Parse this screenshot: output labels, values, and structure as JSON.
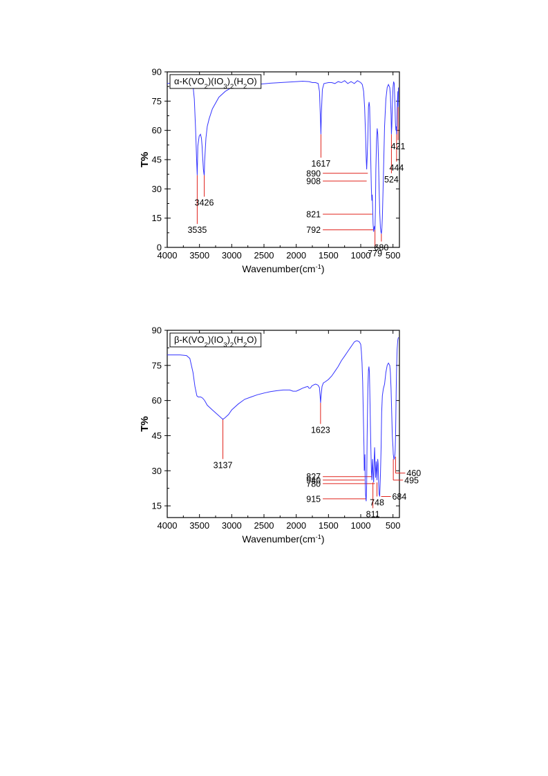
{
  "colors": {
    "line": "#3333ff",
    "annotation": "#e0201a",
    "axis": "#000000"
  },
  "chart_data": [
    {
      "type": "line",
      "legend": "α-K(VO2)(IO3)2(H2O)",
      "legend_placement": "top-left",
      "xlabel": "Wavenumber(cm-1)",
      "ylabel": "T%",
      "xlim": [
        4000,
        400
      ],
      "ylim": [
        0,
        90
      ],
      "xticks": [
        4000,
        3500,
        3000,
        2500,
        2000,
        1500,
        1000,
        500
      ],
      "yticks": [
        0,
        15,
        30,
        45,
        60,
        75,
        90
      ],
      "series": [
        {
          "x": [
            4000,
            3900,
            3800,
            3700,
            3650,
            3600,
            3580,
            3560,
            3545,
            3535,
            3525,
            3505,
            3485,
            3470,
            3460,
            3450,
            3440,
            3430,
            3426,
            3420,
            3400,
            3380,
            3350,
            3300,
            3200,
            3100,
            3000,
            2900,
            2800,
            2600,
            2400,
            2200,
            2000,
            1900,
            1800,
            1750,
            1700,
            1660,
            1640,
            1625,
            1617,
            1610,
            1595,
            1570,
            1500,
            1450,
            1400,
            1350,
            1300,
            1250,
            1200,
            1150,
            1100,
            1050,
            1000,
            975,
            955,
            940,
            925,
            915,
            908,
            900,
            890,
            880,
            870,
            862,
            855,
            845,
            835,
            828,
            821,
            815,
            808,
            800,
            792,
            785,
            779,
            772,
            765,
            755,
            745,
            735,
            725,
            715,
            705,
            695,
            687,
            680,
            673,
            665,
            650,
            630,
            610,
            590,
            570,
            550,
            540,
            530,
            524,
            518,
            510,
            500,
            490,
            480,
            470,
            462,
            455,
            449,
            444,
            440,
            435,
            430,
            425,
            421,
            418,
            415
          ],
          "y": [
            84,
            84.3,
            84.5,
            85,
            85,
            83,
            76,
            60,
            45,
            37,
            52,
            57,
            58,
            56,
            52,
            46,
            40,
            37.5,
            37,
            44,
            56,
            62,
            66,
            71,
            77,
            80,
            82,
            82.5,
            83,
            83.6,
            84.2,
            84.6,
            85,
            85.2,
            85,
            84.5,
            84.5,
            84,
            80,
            66,
            58,
            69,
            81,
            84,
            84.5,
            84.5,
            84,
            85,
            84.5,
            85.5,
            84,
            85,
            84,
            85.5,
            84.5,
            83.5,
            80,
            72,
            58,
            46,
            40,
            46,
            56,
            72,
            74.5,
            72,
            62,
            45,
            30,
            24,
            27,
            20,
            12,
            8,
            10,
            11,
            9,
            20,
            40,
            55,
            61,
            58,
            45,
            30,
            18,
            10,
            8,
            7,
            9,
            15,
            35,
            62,
            76,
            82,
            83.5,
            82,
            78,
            68,
            58,
            62,
            72,
            82,
            85,
            84,
            74,
            64,
            60,
            62,
            58,
            62,
            71,
            76,
            80,
            72,
            76,
            82
          ]
        }
      ],
      "annotations": [
        {
          "label": "3535",
          "x": 3535,
          "y": 37,
          "dir": "down",
          "ty": 12
        },
        {
          "label": "3426",
          "x": 3426,
          "y": 37,
          "dir": "down",
          "ty": 26
        },
        {
          "label": "1617",
          "x": 1617,
          "y": 58,
          "dir": "down",
          "ty": 46
        },
        {
          "label": "890",
          "x": 890,
          "y": 38,
          "dir": "left",
          "ty": 38
        },
        {
          "label": "908",
          "x": 908,
          "y": 34,
          "dir": "left",
          "ty": 34
        },
        {
          "label": "821",
          "x": 821,
          "y": 17,
          "dir": "left",
          "ty": 17
        },
        {
          "label": "792",
          "x": 792,
          "y": 9,
          "dir": "left",
          "ty": 9
        },
        {
          "label": "779",
          "x": 779,
          "y": 9,
          "dir": "down",
          "ty": 0
        },
        {
          "label": "680",
          "x": 680,
          "y": 7,
          "dir": "down",
          "ty": 3
        },
        {
          "label": "524",
          "x": 524,
          "y": 58,
          "dir": "down",
          "ty": 38
        },
        {
          "label": "444",
          "x": 444,
          "y": 60,
          "dir": "down",
          "ty": 44
        },
        {
          "label": "421",
          "x": 421,
          "y": 72,
          "dir": "down",
          "ty": 55
        }
      ]
    },
    {
      "type": "line",
      "legend": "β-K(VO2)(IO3)2(H2O)",
      "legend_placement": "top-left",
      "xlabel": "Wavenumber(cm-1)",
      "ylabel": "T%",
      "xlim": [
        4000,
        400
      ],
      "ylim": [
        10,
        90
      ],
      "xticks": [
        4000,
        3500,
        3000,
        2500,
        2000,
        1500,
        1000,
        500
      ],
      "yticks": [
        15,
        30,
        45,
        60,
        75,
        90
      ],
      "series": [
        {
          "x": [
            4000,
            3900,
            3800,
            3700,
            3650,
            3600,
            3570,
            3540,
            3520,
            3500,
            3480,
            3450,
            3420,
            3380,
            3300,
            3200,
            3160,
            3137,
            3110,
            3050,
            3000,
            2900,
            2800,
            2700,
            2600,
            2500,
            2400,
            2300,
            2200,
            2100,
            2050,
            2000,
            1950,
            1900,
            1850,
            1820,
            1800,
            1780,
            1760,
            1740,
            1720,
            1700,
            1680,
            1660,
            1640,
            1630,
            1623,
            1615,
            1600,
            1580,
            1550,
            1500,
            1450,
            1400,
            1350,
            1300,
            1250,
            1200,
            1150,
            1100,
            1070,
            1050,
            1020,
            1000,
            990,
            980,
            970,
            960,
            950,
            945,
            940,
            935,
            930,
            925,
            920,
            915,
            908,
            900,
            890,
            880,
            872,
            865,
            855,
            845,
            835,
            827,
            822,
            817,
            811,
            805,
            800,
            795,
            790,
            785,
            780,
            775,
            770,
            765,
            760,
            755,
            748,
            742,
            736,
            730,
            722,
            715,
            705,
            695,
            684,
            675,
            665,
            650,
            630,
            610,
            590,
            570,
            550,
            540,
            530,
            520,
            510,
            500,
            495,
            490,
            485,
            480,
            475,
            470,
            465,
            460,
            455,
            450,
            445,
            440,
            435,
            430,
            425,
            420,
            415
          ],
          "y": [
            79.5,
            79.5,
            79.5,
            79.2,
            78,
            72,
            66,
            62,
            61.5,
            61.5,
            61.5,
            61,
            60,
            58,
            56,
            53.5,
            52.5,
            52,
            52.5,
            54,
            56,
            58.5,
            60.5,
            61.5,
            62.5,
            63.2,
            63.8,
            64.2,
            64.5,
            64.5,
            64,
            64,
            64.6,
            65.3,
            65.8,
            66,
            65.2,
            65.3,
            66.2,
            66.5,
            66.8,
            67,
            66.8,
            66.5,
            65.5,
            62,
            59,
            62,
            66,
            67.5,
            68,
            69,
            70.5,
            72.5,
            74.5,
            77,
            79,
            81,
            83,
            85,
            85.5,
            85.5,
            85,
            84,
            81,
            76,
            68,
            55,
            40,
            30,
            33,
            37,
            25,
            20,
            18,
            17,
            24,
            45,
            65,
            73,
            74.5,
            72,
            58,
            42,
            30,
            26,
            31,
            35,
            31,
            27,
            25,
            30,
            36,
            40,
            36,
            31,
            27,
            30,
            34,
            31,
            26,
            31,
            35,
            33,
            25,
            20,
            19,
            28,
            40,
            55,
            62,
            65,
            67,
            72,
            75,
            76,
            75,
            72,
            65,
            55,
            45,
            40,
            37,
            36,
            35,
            35,
            36,
            37,
            39,
            45,
            55,
            64,
            72,
            78,
            82,
            84,
            86,
            86.5,
            87
          ]
        }
      ],
      "annotations": [
        {
          "label": "3137",
          "x": 3137,
          "y": 52,
          "dir": "down",
          "ty": 35
        },
        {
          "label": "1623",
          "x": 1623,
          "y": 59,
          "dir": "down",
          "ty": 50
        },
        {
          "label": "827",
          "x": 827,
          "y": 27.5,
          "dir": "left",
          "ty": 27.5
        },
        {
          "label": "940",
          "x": 940,
          "y": 26,
          "dir": "left",
          "ty": 26
        },
        {
          "label": "780",
          "x": 780,
          "y": 24.5,
          "dir": "left",
          "ty": 24.5
        },
        {
          "label": "915",
          "x": 915,
          "y": 18,
          "dir": "left",
          "ty": 18
        },
        {
          "label": "811",
          "x": 811,
          "y": 25,
          "dir": "down",
          "ty": 14
        },
        {
          "label": "748",
          "x": 748,
          "y": 25,
          "dir": "down",
          "ty": 19
        },
        {
          "label": "684",
          "x": 684,
          "y": 19,
          "dir": "right",
          "ty": 19
        },
        {
          "label": "495",
          "x": 495,
          "y": 35,
          "dir": "right",
          "ty": 26
        },
        {
          "label": "460",
          "x": 460,
          "y": 36,
          "dir": "right",
          "ty": 29
        }
      ]
    }
  ]
}
